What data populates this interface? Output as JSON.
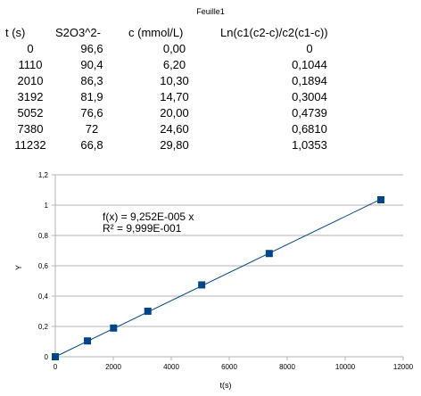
{
  "sheet": {
    "title": "Feuille1"
  },
  "table": {
    "headers": [
      "t (s)",
      "S2O3^2-",
      "c (mmol/L)",
      "Ln(c1(c2-c)/c2(c1-c))"
    ],
    "rows": [
      [
        "0",
        "96,6",
        "0,00",
        "0"
      ],
      [
        "1110",
        "90,4",
        "6,20",
        "0,1044"
      ],
      [
        "2010",
        "86,3",
        "10,30",
        "0,1894"
      ],
      [
        "3192",
        "81,9",
        "14,70",
        "0,3004"
      ],
      [
        "5052",
        "76,6",
        "20,00",
        "0,4739"
      ],
      [
        "7380",
        "72",
        "24,60",
        "0,6810"
      ],
      [
        "11232",
        "66,8",
        "29,80",
        "1,0353"
      ]
    ]
  },
  "chart_data": {
    "type": "scatter",
    "title": "",
    "xlabel": "t(s)",
    "ylabel": "Y",
    "xlim": [
      0,
      12000
    ],
    "ylim": [
      0,
      1.2
    ],
    "x_ticks": [
      "0",
      "2000",
      "4000",
      "6000",
      "8000",
      "10000",
      "12000"
    ],
    "y_ticks": [
      "0",
      "0,2",
      "0,4",
      "0,6",
      "0,8",
      "1",
      "1,2"
    ],
    "x_tick_values": [
      0,
      2000,
      4000,
      6000,
      8000,
      10000,
      12000
    ],
    "y_tick_values": [
      0,
      0.2,
      0.4,
      0.6,
      0.8,
      1.0,
      1.2
    ],
    "grid": "horizontal",
    "series": [
      {
        "x": [
          0,
          1110,
          2010,
          3192,
          5052,
          7380,
          11232
        ],
        "y": [
          0,
          0.1044,
          0.1894,
          0.3004,
          0.4739,
          0.681,
          1.0353
        ]
      }
    ],
    "trendline": {
      "slope": 9.252e-05,
      "x_range": [
        0,
        11232
      ],
      "equation": "f(x) = 9,252E-005 x",
      "r_squared": "R² = 9,999E-001"
    },
    "colors": {
      "marker": "#004586",
      "line": "#004586",
      "grid": "#b3b3b3",
      "axis": "#b3b3b3"
    }
  }
}
